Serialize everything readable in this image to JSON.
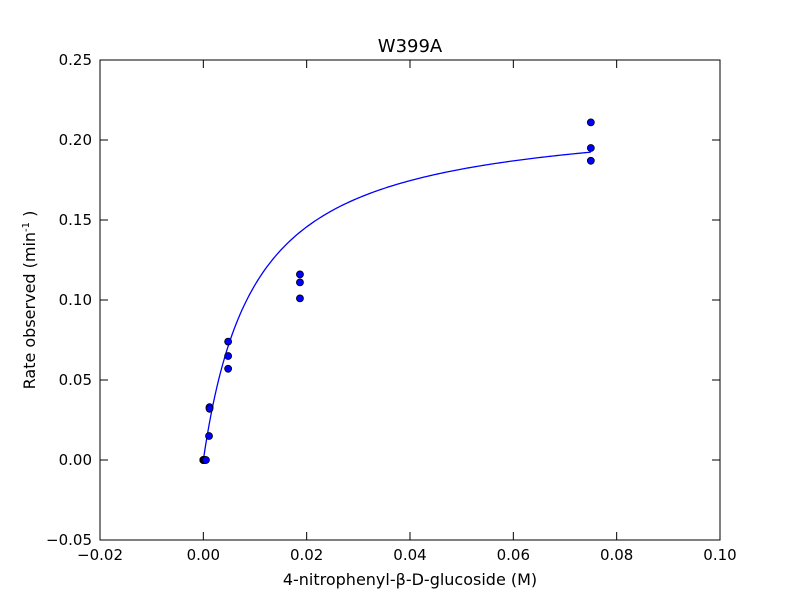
{
  "chart_data": {
    "type": "scatter",
    "title": "W399A",
    "xlabel": "4-nitrophenyl-β-D-glucoside (M)",
    "ylabel_main": "Rate observed (min",
    "ylabel_sup": "-1",
    "ylabel_end": " )",
    "xlim": [
      -0.02,
      0.1
    ],
    "ylim": [
      -0.05,
      0.25
    ],
    "xticks": [
      -0.02,
      0.0,
      0.02,
      0.04,
      0.06,
      0.08,
      0.1
    ],
    "xtick_labels": [
      "−0.02",
      "0.00",
      "0.02",
      "0.04",
      "0.06",
      "0.08",
      "0.10"
    ],
    "yticks": [
      -0.05,
      0.0,
      0.05,
      0.1,
      0.15,
      0.2,
      0.25
    ],
    "ytick_labels": [
      "−0.05",
      "0.00",
      "0.05",
      "0.10",
      "0.15",
      "0.20",
      "0.25"
    ],
    "grid": false,
    "point_color": "#0000ff",
    "curve_color": "#0000ff",
    "points": [
      {
        "x": 0.0,
        "y": 0.0
      },
      {
        "x": 0.0,
        "y": 0.0
      },
      {
        "x": 0.0,
        "y": 0.0
      },
      {
        "x": 5e-05,
        "y": 0.0
      },
      {
        "x": 0.0001,
        "y": 0.0
      },
      {
        "x": 0.0002,
        "y": 0.0
      },
      {
        "x": 0.0003,
        "y": 0.0
      },
      {
        "x": 0.0005,
        "y": 0.0
      },
      {
        "x": 0.0012,
        "y": 0.033
      },
      {
        "x": 0.0012,
        "y": 0.032
      },
      {
        "x": 0.0011,
        "y": 0.015
      },
      {
        "x": 0.0048,
        "y": 0.074
      },
      {
        "x": 0.0048,
        "y": 0.065
      },
      {
        "x": 0.0048,
        "y": 0.057
      },
      {
        "x": 0.0187,
        "y": 0.116
      },
      {
        "x": 0.0187,
        "y": 0.111
      },
      {
        "x": 0.0187,
        "y": 0.101
      },
      {
        "x": 0.075,
        "y": 0.211
      },
      {
        "x": 0.075,
        "y": 0.195
      },
      {
        "x": 0.075,
        "y": 0.187
      }
    ],
    "fit": {
      "vmax": 0.2178,
      "km": 0.0099,
      "x_range": [
        0.0,
        0.075
      ]
    }
  }
}
